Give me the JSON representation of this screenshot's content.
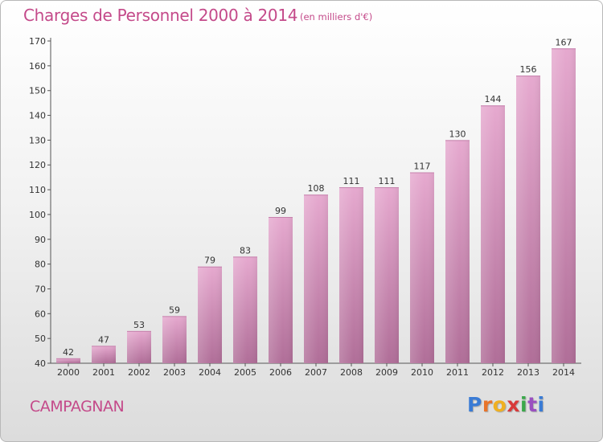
{
  "header": {
    "title": "Charges de Personnel 2000 à 2014",
    "subtitle": "(en milliers d'€)"
  },
  "footer": {
    "commune": "CAMPAGNAN",
    "logo_letters": [
      "P",
      "r",
      "o",
      "x",
      "i",
      "t",
      "i"
    ],
    "logo_colors": [
      "#3a7bd5",
      "#e8742a",
      "#f0b020",
      "#d83a3a",
      "#3aa84a",
      "#9a50c0",
      "#3a7bd5"
    ]
  },
  "chart_data": {
    "type": "bar",
    "title": "Charges de Personnel 2000 à 2014",
    "subtitle": "(en milliers d'€)",
    "categories": [
      "2000",
      "2001",
      "2002",
      "2003",
      "2004",
      "2005",
      "2006",
      "2007",
      "2008",
      "2009",
      "2010",
      "2011",
      "2012",
      "2013",
      "2014"
    ],
    "values": [
      42,
      47,
      53,
      59,
      79,
      83,
      99,
      108,
      111,
      111,
      117,
      130,
      144,
      156,
      167
    ],
    "xlabel": "",
    "ylabel": "",
    "ylim": [
      40,
      170
    ],
    "yticks": [
      40,
      50,
      60,
      70,
      80,
      90,
      100,
      110,
      120,
      130,
      140,
      150,
      160,
      170
    ],
    "grid": false,
    "bar_color": "#d98fbd",
    "text_color": "#c44a8a"
  }
}
